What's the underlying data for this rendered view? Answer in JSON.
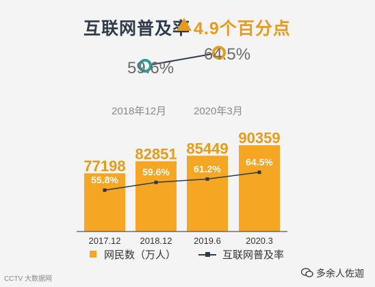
{
  "header": {
    "title": "互联网普及率",
    "change": "4.9个百分点"
  },
  "compare": {
    "start_value": "59.6%",
    "start_label": "2018年12月",
    "end_value": "64.5%",
    "end_label": "2020年3月"
  },
  "chart_data": {
    "type": "bar",
    "categories": [
      "2017.12",
      "2018.12",
      "2019.6",
      "2020.3"
    ],
    "series": [
      {
        "name": "网民数（万人）",
        "type": "bar",
        "values": [
          77198,
          82851,
          85449,
          90359
        ],
        "labels": [
          "77198",
          "82851",
          "85449",
          "90359"
        ]
      },
      {
        "name": "互联网普及率",
        "type": "line",
        "values": [
          55.8,
          59.6,
          61.2,
          64.5
        ],
        "labels": [
          "55.8%",
          "59.6%",
          "61.2%",
          "64.5%"
        ]
      }
    ],
    "legend_position": "bottom",
    "grid": false
  },
  "footer": {
    "source_badge": "CCTV 大数据网",
    "wechat_account": "多余人佐迦"
  },
  "colors": {
    "bar": "#f5a623",
    "bar_label": "#e89a19",
    "line": "#2f3b4a",
    "start_marker": "#2a9d96",
    "end_marker": "#e89a19"
  }
}
